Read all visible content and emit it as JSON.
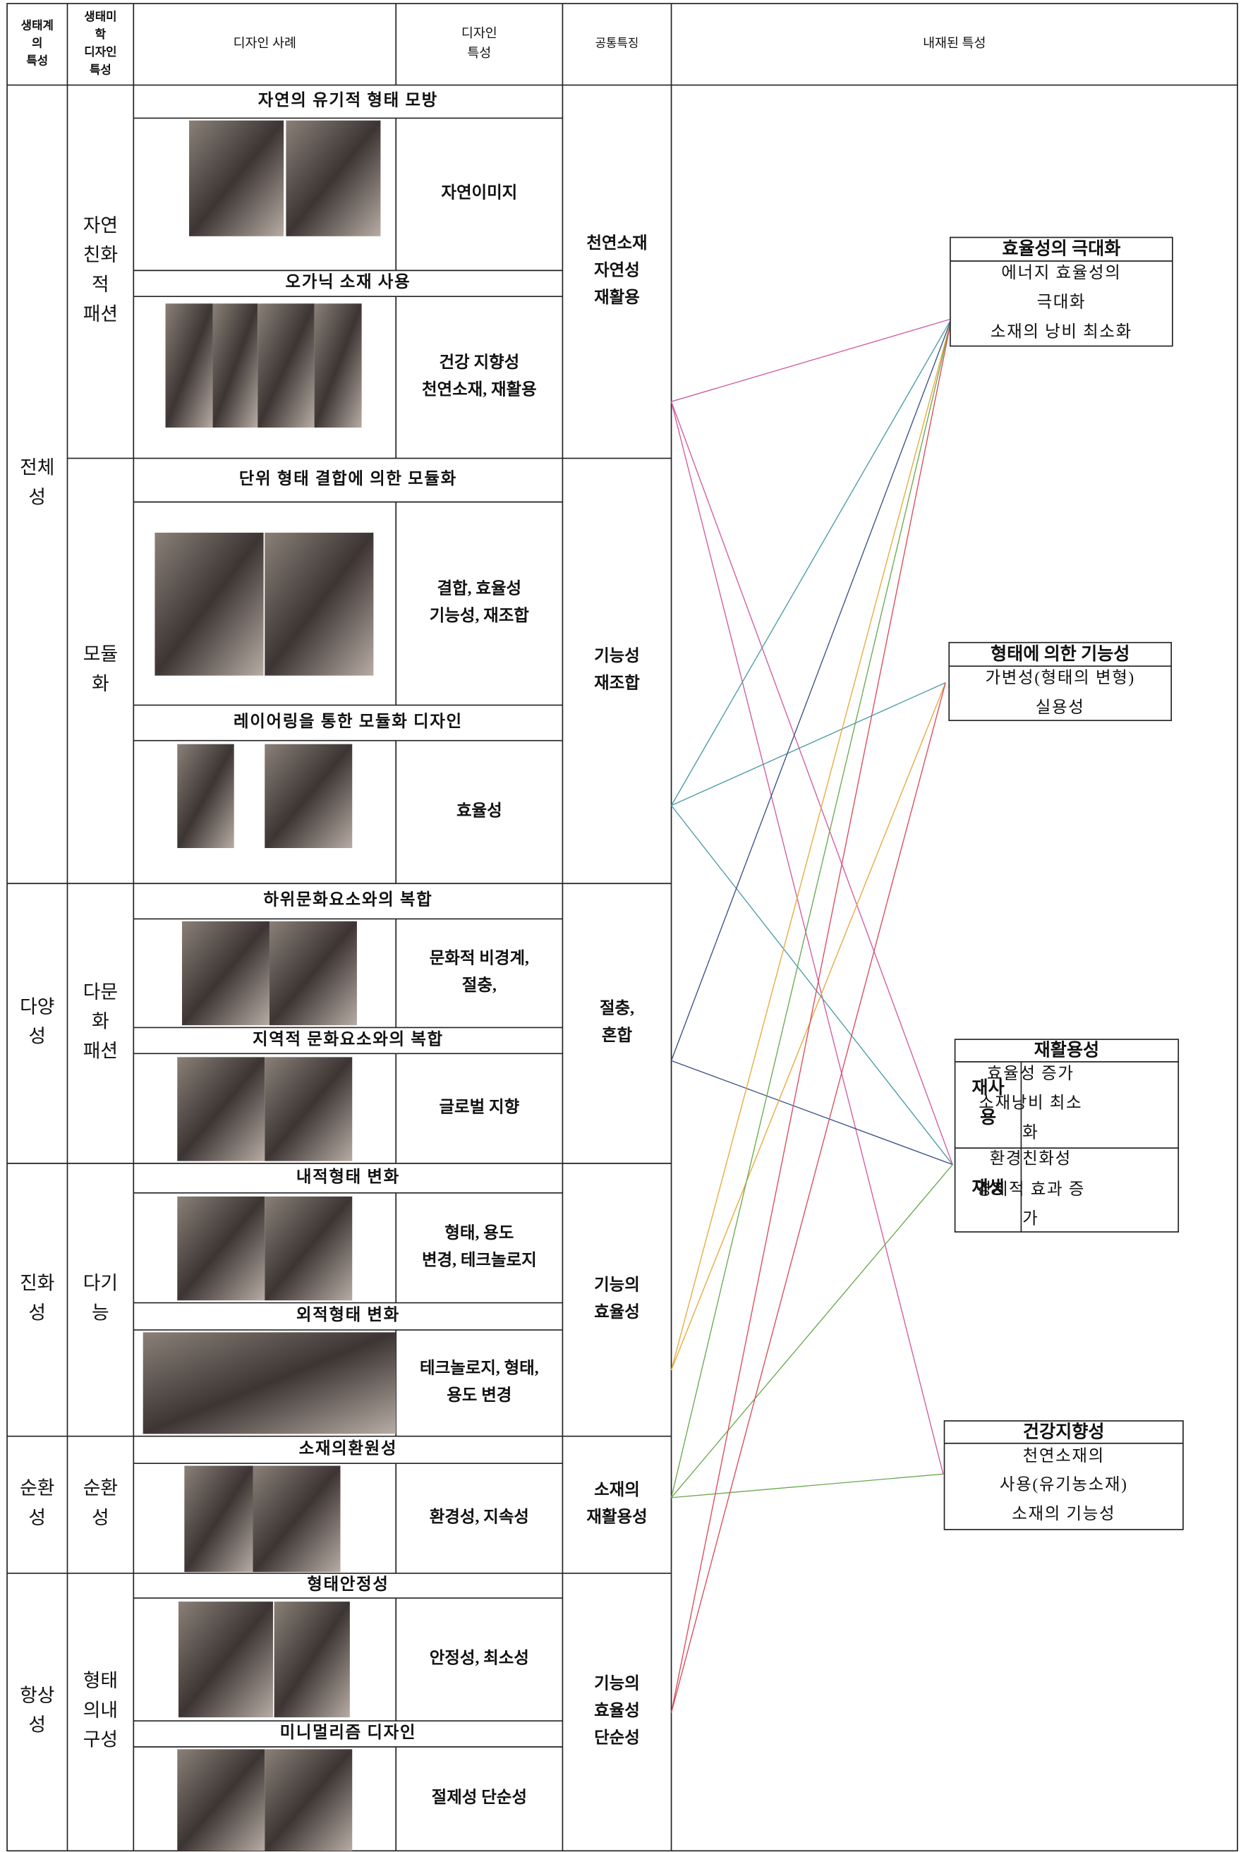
{
  "header": {
    "ecosystem": [
      "생태계",
      "의",
      "특성"
    ],
    "aesthetic": [
      "생태미",
      "학",
      "디자인",
      "특성"
    ],
    "case": "디자인 사례",
    "feature": [
      "디자인",
      "특성"
    ],
    "common": "공통특징",
    "inherent": "내재된 특성"
  },
  "rows": [
    {
      "ecosystem": [
        "전체",
        "성"
      ],
      "aesthetics": [
        {
          "name": [
            "자연",
            "친화",
            "적",
            "패션"
          ],
          "common": [
            "천연소재",
            "자연성",
            "재활용"
          ],
          "cases": [
            {
              "title": "자연의 유기적 형태 모방",
              "feature": [
                "자연이미지"
              ]
            },
            {
              "title": "오가닉 소재 사용",
              "feature": [
                "건강 지향성",
                "천연소재, 재활용"
              ]
            }
          ]
        },
        {
          "name": [
            "모듈",
            "화"
          ],
          "common": [
            "기능성",
            "재조합"
          ],
          "cases": [
            {
              "title": "단위 형태 결합에 의한 모듈화",
              "feature": [
                "결합, 효율성",
                "기능성, 재조합"
              ]
            },
            {
              "title": "레이어링을 통한 모듈화 디자인",
              "feature": [
                "효율성"
              ]
            }
          ]
        }
      ]
    },
    {
      "ecosystem": [
        "다양",
        "성"
      ],
      "aesthetics": [
        {
          "name": [
            "다문",
            "화",
            "패션"
          ],
          "common": [
            "절충,",
            "혼합"
          ],
          "cases": [
            {
              "title": "하위문화요소와의 복합",
              "feature": [
                "문화적 비경계,",
                "절충,"
              ]
            },
            {
              "title": "지역적 문화요소와의 복합",
              "feature": [
                "글로벌 지향"
              ]
            }
          ]
        }
      ]
    },
    {
      "ecosystem": [
        "진화",
        "성"
      ],
      "aesthetics": [
        {
          "name": [
            "다기",
            "능"
          ],
          "common": [
            "기능의",
            "효율성"
          ],
          "cases": [
            {
              "title": "내적형태 변화",
              "feature": [
                "형태, 용도",
                "변경, 테크놀로지"
              ]
            },
            {
              "title": "외적형태 변화",
              "feature": [
                "테크놀로지, 형태,",
                "용도 변경"
              ]
            }
          ]
        }
      ]
    },
    {
      "ecosystem": [
        "순환",
        "성"
      ],
      "aesthetics": [
        {
          "name": [
            "순환",
            "성"
          ],
          "common": [
            "소재의",
            "재활용성"
          ],
          "cases": [
            {
              "title": "소재의환원성",
              "feature": [
                "환경성, 지속성"
              ]
            }
          ]
        }
      ]
    },
    {
      "ecosystem": [
        "항상",
        "성"
      ],
      "aesthetics": [
        {
          "name": [
            "형태",
            "의내",
            "구성"
          ],
          "common": [
            "기능의",
            "효율성",
            "단순성"
          ],
          "cases": [
            {
              "title": "형태안정성",
              "feature": [
                "안정성, 최소성"
              ]
            },
            {
              "title": "미니멀리즘 디자인",
              "feature": [
                "절제성 단순성"
              ]
            }
          ]
        }
      ]
    }
  ],
  "inherent": [
    {
      "title": "효율성의 극대화",
      "lines": [
        "에너지 효율성의",
        "극대화",
        "소재의 낭비 최소화"
      ]
    },
    {
      "title": "형태에 의한 기능성",
      "lines": [
        "가변성(형태의 변형)",
        "실용성"
      ]
    },
    {
      "title": "재활용성",
      "parts": [
        {
          "label": [
            "재사",
            "용"
          ],
          "lines": [
            "효율성 증가",
            "소재낭비  최소",
            "화"
          ]
        },
        {
          "label": [
            "재생"
          ],
          "lines": [
            "환경친화성",
            "경제적 효과 증",
            "가"
          ]
        }
      ]
    },
    {
      "title": "건강지향성",
      "lines": [
        "천연소재의",
        "사용(유기농소재)",
        "소재의 기능성"
      ]
    }
  ]
}
